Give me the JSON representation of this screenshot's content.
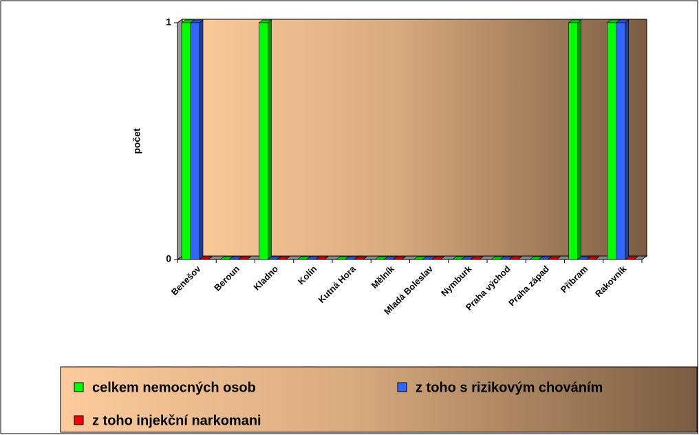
{
  "chart_data": {
    "type": "bar3d",
    "ylabel": "počet",
    "categories": [
      "Benešov",
      "Beroun",
      "Kladno",
      "Kolín",
      "Kutná Hora",
      "Mělník",
      "Mladá Boleslav",
      "Nymburk",
      "Praha východ",
      "Praha západ",
      "Příbram",
      "Rakovník"
    ],
    "series": [
      {
        "name": "celkem nemocných osob",
        "color": "#00ff00",
        "values": [
          1,
          0,
          1,
          0,
          0,
          0,
          0,
          0,
          0,
          0,
          1,
          1
        ]
      },
      {
        "name": "z toho s rizikovým chováním",
        "color": "#3366ff",
        "values": [
          1,
          0,
          0,
          0,
          0,
          0,
          0,
          0,
          0,
          0,
          0,
          1
        ]
      },
      {
        "name": "z toho injekční narkomani",
        "color": "#ff0000",
        "values": [
          0,
          0,
          0,
          0,
          0,
          0,
          0,
          0,
          0,
          0,
          0,
          0
        ]
      }
    ],
    "ylim": [
      0,
      1
    ],
    "yticks": [
      0,
      1
    ],
    "legend": "bottom"
  }
}
